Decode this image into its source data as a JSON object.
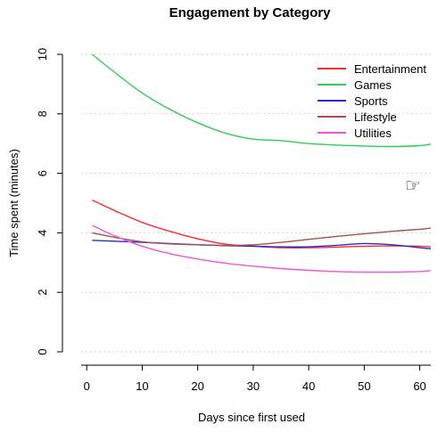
{
  "chart_data": {
    "type": "line",
    "title": "Engagement by Category",
    "xlabel": "Days since first used",
    "ylabel": "Time spent (minutes)",
    "xlim": [
      -1,
      62
    ],
    "ylim": [
      0,
      10
    ],
    "xticks": [
      0,
      10,
      20,
      30,
      40,
      50,
      60
    ],
    "yticks": [
      0,
      2,
      4,
      6,
      8,
      10
    ],
    "grid": "horizontal dotted",
    "legend_position": "top-right",
    "x": [
      1,
      5,
      10,
      15,
      20,
      25,
      30,
      35,
      40,
      45,
      50,
      55,
      60,
      62
    ],
    "series": [
      {
        "name": "Entertainment",
        "color": "#ff2b2b",
        "values": [
          5.1,
          4.75,
          4.35,
          4.05,
          3.8,
          3.62,
          3.55,
          3.5,
          3.5,
          3.52,
          3.55,
          3.56,
          3.55,
          3.53
        ]
      },
      {
        "name": "Games",
        "color": "#33cc55",
        "values": [
          10.0,
          9.4,
          8.7,
          8.15,
          7.7,
          7.35,
          7.15,
          7.1,
          7.0,
          6.95,
          6.92,
          6.9,
          6.93,
          6.98
        ]
      },
      {
        "name": "Sports",
        "color": "#2a2acc",
        "values": [
          3.75,
          3.72,
          3.68,
          3.64,
          3.6,
          3.57,
          3.55,
          3.53,
          3.53,
          3.58,
          3.64,
          3.6,
          3.5,
          3.46
        ]
      },
      {
        "name": "Lifestyle",
        "color": "#a65050",
        "values": [
          4.0,
          3.85,
          3.7,
          3.63,
          3.6,
          3.58,
          3.6,
          3.68,
          3.78,
          3.88,
          3.97,
          4.05,
          4.12,
          4.16
        ]
      },
      {
        "name": "Utilities",
        "color": "#ee55dd",
        "values": [
          4.25,
          3.9,
          3.55,
          3.3,
          3.12,
          2.98,
          2.88,
          2.8,
          2.74,
          2.7,
          2.68,
          2.68,
          2.7,
          2.73
        ]
      }
    ]
  },
  "icons": {
    "cursor": "pointing-hand-icon",
    "cursor_glyph": "☞"
  }
}
